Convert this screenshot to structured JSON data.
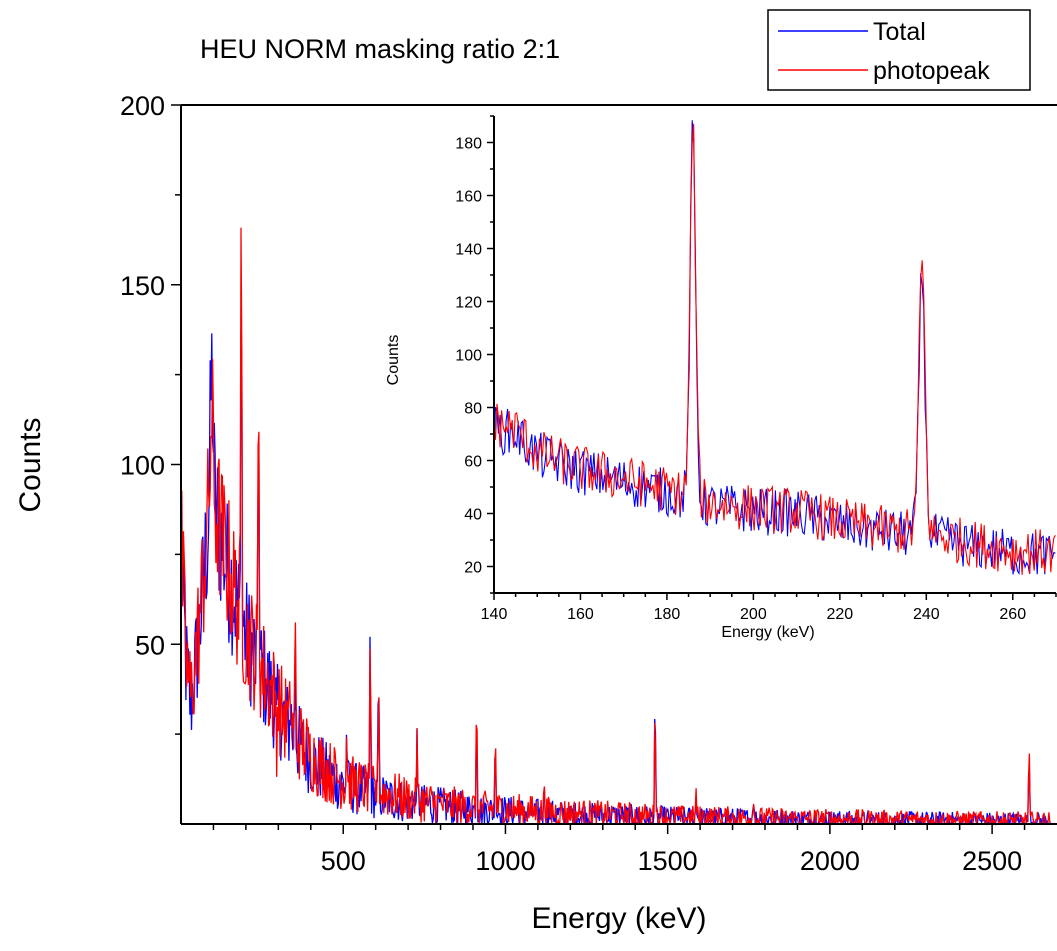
{
  "chart_data": [
    {
      "type": "line",
      "title": "HEU NORM masking ratio 2:1",
      "xlabel": "Energy (keV)",
      "ylabel": "Counts",
      "xlim": [
        0,
        2700
      ],
      "ylim": [
        0,
        200
      ],
      "xticks": [
        500,
        1000,
        1500,
        2000,
        2500
      ],
      "yticks": [
        50,
        100,
        150,
        200
      ],
      "legend": {
        "position": "top-right",
        "entries": [
          "Total",
          "photopeak"
        ]
      },
      "series": [
        {
          "name": "Total",
          "color": "#0000ff",
          "continuum": [
            [
              0,
              78
            ],
            [
              15,
              45
            ],
            [
              30,
              33
            ],
            [
              50,
              48
            ],
            [
              70,
              68
            ],
            [
              90,
              90
            ],
            [
              110,
              85
            ],
            [
              140,
              72
            ],
            [
              170,
              62
            ],
            [
              200,
              52
            ],
            [
              250,
              42
            ],
            [
              300,
              32
            ],
            [
              350,
              24
            ],
            [
              400,
              18
            ],
            [
              450,
              14
            ],
            [
              500,
              11
            ],
            [
              600,
              8
            ],
            [
              700,
              6
            ],
            [
              800,
              5
            ],
            [
              900,
              4
            ],
            [
              1000,
              3.5
            ],
            [
              1200,
              2.5
            ],
            [
              1500,
              1.8
            ],
            [
              2000,
              1.2
            ],
            [
              2600,
              0.8
            ]
          ],
          "peaks": [
            [
              95,
              125
            ],
            [
              186,
              182
            ],
            [
              239,
              130
            ],
            [
              295,
              25
            ],
            [
              338,
              35
            ],
            [
              352,
              55
            ],
            [
              511,
              27
            ],
            [
              583,
              53
            ],
            [
              609,
              42
            ],
            [
              727,
              22
            ],
            [
              911,
              33
            ],
            [
              969,
              25
            ],
            [
              1120,
              12
            ],
            [
              1461,
              37
            ],
            [
              1588,
              8
            ],
            [
              1764,
              8
            ],
            [
              2614,
              20
            ]
          ]
        },
        {
          "name": "photopeak",
          "color": "#ff0000",
          "continuum": [
            [
              0,
              80
            ],
            [
              15,
              47
            ],
            [
              30,
              35
            ],
            [
              50,
              50
            ],
            [
              70,
              70
            ],
            [
              90,
              92
            ],
            [
              110,
              86
            ],
            [
              140,
              74
            ],
            [
              170,
              63
            ],
            [
              200,
              53
            ],
            [
              250,
              43
            ],
            [
              300,
              33
            ],
            [
              350,
              25
            ],
            [
              400,
              19
            ],
            [
              450,
              15
            ],
            [
              500,
              12
            ],
            [
              600,
              9
            ],
            [
              700,
              7
            ],
            [
              800,
              5.5
            ],
            [
              900,
              4.5
            ],
            [
              1000,
              4
            ],
            [
              1200,
              3
            ],
            [
              1500,
              2
            ],
            [
              2000,
              1.4
            ],
            [
              2600,
              1
            ]
          ],
          "peaks": [
            [
              95,
              112
            ],
            [
              186,
              185
            ],
            [
              239,
              136
            ],
            [
              295,
              27
            ],
            [
              338,
              38
            ],
            [
              352,
              55
            ],
            [
              511,
              28
            ],
            [
              583,
              55
            ],
            [
              609,
              42
            ],
            [
              727,
              24
            ],
            [
              911,
              34
            ],
            [
              969,
              27
            ],
            [
              1120,
              12
            ],
            [
              1461,
              38
            ],
            [
              1588,
              9
            ],
            [
              1764,
              6
            ],
            [
              2614,
              22
            ]
          ]
        }
      ]
    },
    {
      "type": "line",
      "title": "",
      "xlabel": "Energy (keV)",
      "ylabel": "Counts",
      "xlim": [
        140,
        270
      ],
      "ylim": [
        10,
        190
      ],
      "xticks": [
        140,
        160,
        180,
        200,
        220,
        240,
        260
      ],
      "yticks": [
        20,
        40,
        60,
        80,
        100,
        120,
        140,
        160,
        180
      ],
      "series": [
        {
          "name": "Total",
          "color": "#0000ff",
          "continuum": [
            [
              140,
              72
            ],
            [
              145,
              70
            ],
            [
              150,
              62
            ],
            [
              160,
              56
            ],
            [
              170,
              52
            ],
            [
              180,
              48
            ],
            [
              185,
              46
            ],
            [
              190,
              43
            ],
            [
              200,
              41
            ],
            [
              210,
              40
            ],
            [
              220,
              36
            ],
            [
              230,
              33
            ],
            [
              236,
              32
            ],
            [
              242,
              31
            ],
            [
              250,
              28
            ],
            [
              260,
              25
            ],
            [
              270,
              24
            ]
          ],
          "peaks": [
            [
              186,
              184,
              0.9
            ],
            [
              239,
              131,
              1.0
            ]
          ]
        },
        {
          "name": "photopeak",
          "color": "#ff0000",
          "continuum": [
            [
              140,
              74
            ],
            [
              145,
              72
            ],
            [
              150,
              63
            ],
            [
              160,
              57
            ],
            [
              170,
              53
            ],
            [
              180,
              49
            ],
            [
              185,
              47
            ],
            [
              190,
              44
            ],
            [
              200,
              42
            ],
            [
              210,
              41
            ],
            [
              220,
              37
            ],
            [
              230,
              34
            ],
            [
              236,
              33
            ],
            [
              242,
              32
            ],
            [
              250,
              29
            ],
            [
              260,
              26
            ],
            [
              270,
              25
            ]
          ],
          "peaks": [
            [
              186,
              186,
              0.9
            ],
            [
              239,
              136,
              1.0
            ]
          ]
        }
      ]
    }
  ]
}
